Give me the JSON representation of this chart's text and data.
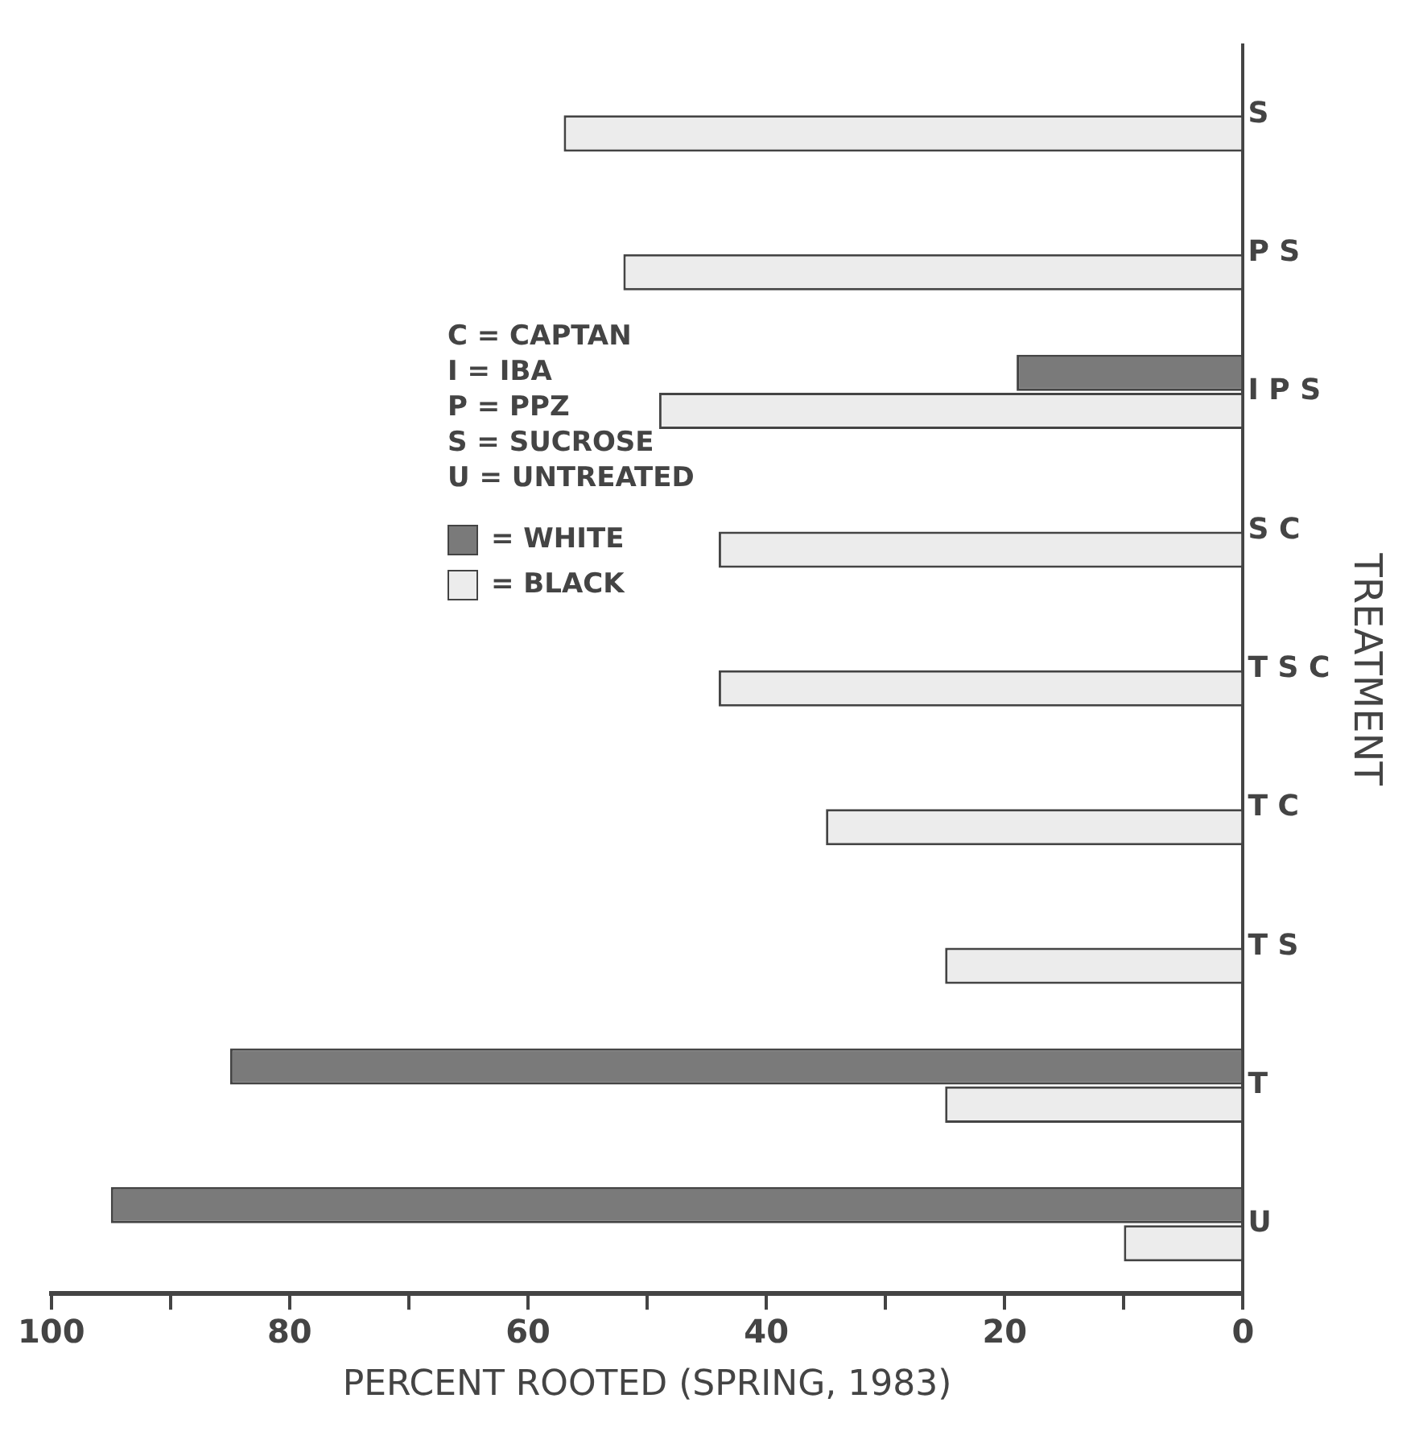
{
  "chart_data": {
    "type": "bar",
    "orientation": "horizontal",
    "xlabel": "PERCENT ROOTED (SPRING, 1983)",
    "ylabel": "TREATMENT",
    "categories": [
      "S",
      "P S",
      "I P S",
      "S C",
      "T S C",
      "T C",
      "T S",
      "T",
      "U"
    ],
    "series": [
      {
        "name": "= WHITE",
        "color": "#7a7a7a",
        "values": [
          null,
          null,
          19,
          null,
          null,
          null,
          null,
          85,
          95
        ]
      },
      {
        "name": "= BLACK",
        "color": "#ececec",
        "values": [
          57,
          52,
          49,
          44,
          44,
          35,
          25,
          25,
          10
        ]
      }
    ],
    "xlim": [
      100,
      0
    ],
    "xticks": [
      100,
      {
        "value": 90,
        "label": null
      },
      80,
      {
        "value": 70,
        "label": null
      },
      60,
      {
        "value": 50,
        "label": null
      },
      40,
      {
        "value": 30,
        "label": null
      },
      20,
      {
        "value": 10,
        "label": null
      },
      0
    ],
    "grid": false,
    "legend": "top left",
    "annotations": [
      "C = CAPTAN",
      "I = IBA",
      "P = PPZ",
      "S = SUCROSE",
      "U = UNTREATED"
    ]
  }
}
